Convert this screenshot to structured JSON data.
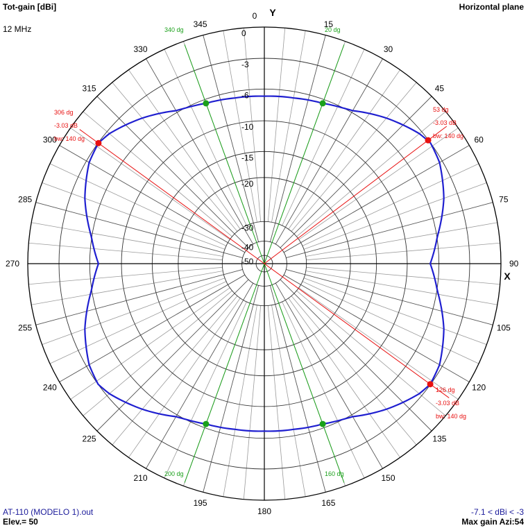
{
  "header": {
    "title": "Tot-gain [dBi]",
    "subtitle": "Horizontal plane",
    "frequency": "12 MHz"
  },
  "footer": {
    "file": "AT-110 (MODELO 1).out",
    "elevation": "Elev.= 50",
    "range": "-7.1 < dBi < -3",
    "max_gain": "Max gain Azi:54"
  },
  "axes": {
    "y_label": "Y",
    "x_label": "X"
  },
  "colors": {
    "pattern": "#1f1fd0",
    "grid": "#000000",
    "beamwidth": "#e81010",
    "marker_green": "#1aa01a",
    "marker_red": "#e81010"
  },
  "chart_data": {
    "type": "polar",
    "title": "Tot-gain [dBi]",
    "angle_labels": [
      "0",
      "15",
      "30",
      "45",
      "60",
      "75",
      "90",
      "105",
      "120",
      "135",
      "150",
      "165",
      "180",
      "195",
      "210",
      "225",
      "240",
      "255",
      "270",
      "285",
      "300",
      "315",
      "330",
      "345"
    ],
    "radial_labels": [
      "0",
      "-3",
      "-6",
      "-10",
      "-15",
      "-20",
      "-30",
      "-40",
      "-50"
    ],
    "radial_values": [
      0,
      -3,
      -6,
      -10,
      -15,
      -20,
      -30,
      -40,
      -50
    ],
    "green_lines": [
      {
        "azimuth": 340,
        "label": "340 dg"
      },
      {
        "azimuth": 20,
        "label": "20 dg"
      },
      {
        "azimuth": 200,
        "label": "200 dg"
      },
      {
        "azimuth": 160,
        "label": "160 dg"
      }
    ],
    "red_markers": [
      {
        "azimuth": 306,
        "label": "306 dg",
        "db": "-3.03 dB",
        "bw": "bw: 140 dg"
      },
      {
        "azimuth": 53,
        "label": "53 dg",
        "db": "-3.03 dB",
        "bw": "bw: 140 dg"
      },
      {
        "azimuth": 126,
        "label": "126 dg",
        "db": "-3.03 dB",
        "bw": "bw: 140 dg"
      }
    ],
    "pattern_series": {
      "name": "",
      "azimuth_deg": [
        0,
        10,
        20,
        30,
        40,
        45,
        50,
        54,
        60,
        70,
        80,
        90,
        100,
        110,
        120,
        126,
        130,
        135,
        140,
        150,
        160,
        170,
        180,
        190,
        200,
        210,
        220,
        225,
        230,
        234,
        240,
        250,
        260,
        270,
        280,
        290,
        300,
        306,
        310,
        315,
        320,
        330,
        340,
        350,
        360
      ],
      "gain_dbi": [
        -6.9,
        -6.8,
        -6.5,
        -5.8,
        -4.5,
        -3.9,
        -3.3,
        -3.0,
        -3.3,
        -4.4,
        -5.8,
        -7.1,
        -5.8,
        -4.4,
        -3.3,
        -3.03,
        -3.3,
        -3.9,
        -4.5,
        -5.8,
        -6.5,
        -6.8,
        -6.9,
        -6.8,
        -6.5,
        -5.8,
        -4.5,
        -3.9,
        -3.3,
        -3.0,
        -3.3,
        -4.4,
        -5.8,
        -7.1,
        -5.8,
        -4.4,
        -3.3,
        -3.03,
        -3.3,
        -3.9,
        -4.5,
        -5.8,
        -6.5,
        -6.8,
        -6.9
      ]
    }
  }
}
